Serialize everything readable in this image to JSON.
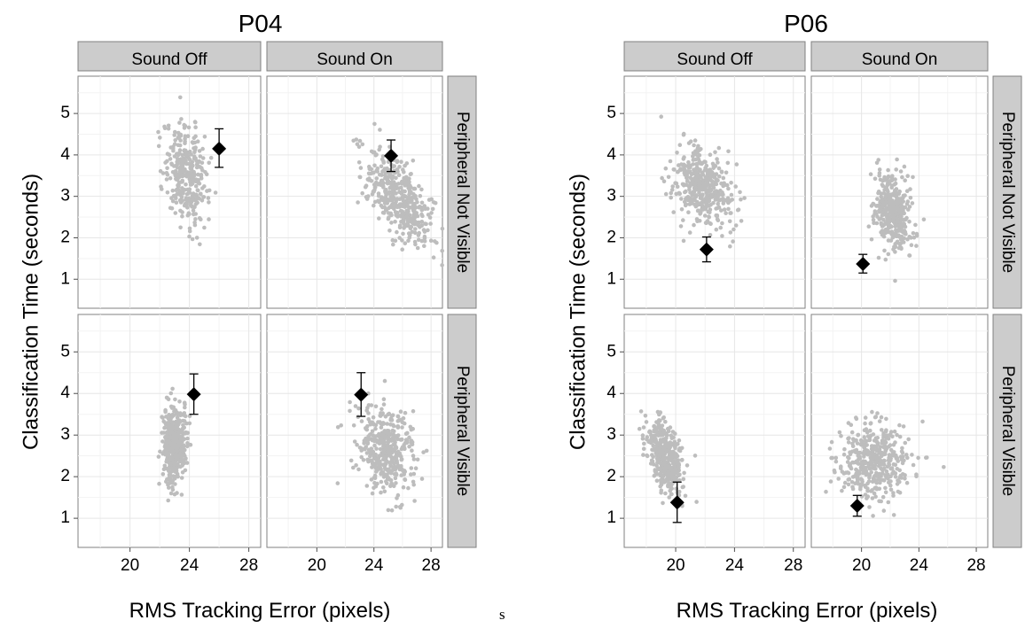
{
  "stray_char": "s",
  "chart_data": [
    {
      "type": "scatter",
      "title": "P04",
      "xlabel": "RMS Tracking Error (pixels)",
      "ylabel": "Classification Time (seconds)",
      "xlim": [
        16.5,
        28.8
      ],
      "ylim": [
        0.3,
        5.9
      ],
      "xticks": [
        20,
        24,
        28
      ],
      "yticks": [
        1,
        2,
        3,
        4,
        5
      ],
      "grid": true,
      "col_facets": [
        "Sound Off",
        "Sound On"
      ],
      "row_facets": [
        "Peripheral Not Visible",
        "Peripheral Visible"
      ],
      "panels": [
        {
          "col": "Sound Off",
          "row": "Peripheral Not Visible",
          "cloud": {
            "x_mean": 23.8,
            "x_sd": 0.75,
            "y_mean": 3.55,
            "y_sd": 0.6,
            "corr": -0.2,
            "n": 320
          },
          "point": {
            "x": 26.0,
            "y": 4.15,
            "err_low": 3.7,
            "err_high": 4.63
          }
        },
        {
          "col": "Sound On",
          "row": "Peripheral Not Visible",
          "cloud": {
            "x_mean": 25.7,
            "x_sd": 1.15,
            "y_mean": 2.95,
            "y_sd": 0.55,
            "corr": -0.55,
            "n": 420
          },
          "point": {
            "x": 25.2,
            "y": 3.98,
            "err_low": 3.6,
            "err_high": 4.36
          }
        },
        {
          "col": "Sound Off",
          "row": "Peripheral Visible",
          "cloud": {
            "x_mean": 23.0,
            "x_sd": 0.4,
            "y_mean": 2.75,
            "y_sd": 0.5,
            "corr": 0.05,
            "n": 420
          },
          "point": {
            "x": 24.3,
            "y": 3.98,
            "err_low": 3.5,
            "err_high": 4.47
          }
        },
        {
          "col": "Sound On",
          "row": "Peripheral Visible",
          "cloud": {
            "x_mean": 24.8,
            "x_sd": 1.0,
            "y_mean": 2.65,
            "y_sd": 0.5,
            "corr": -0.15,
            "n": 420
          },
          "point": {
            "x": 23.1,
            "y": 3.97,
            "err_low": 3.45,
            "err_high": 4.5
          }
        }
      ]
    },
    {
      "type": "scatter",
      "title": "P06",
      "xlabel": "RMS Tracking Error (pixels)",
      "ylabel": "Classification Time (seconds)",
      "xlim": [
        16.5,
        28.8
      ],
      "ylim": [
        0.3,
        5.9
      ],
      "xticks": [
        20,
        24,
        28
      ],
      "yticks": [
        1,
        2,
        3,
        4,
        5
      ],
      "grid": true,
      "col_facets": [
        "Sound Off",
        "Sound On"
      ],
      "row_facets": [
        "Peripheral Not Visible",
        "Peripheral Visible"
      ],
      "panels": [
        {
          "col": "Sound Off",
          "row": "Peripheral Not Visible",
          "cloud": {
            "x_mean": 21.8,
            "x_sd": 1.0,
            "y_mean": 3.2,
            "y_sd": 0.5,
            "corr": -0.35,
            "n": 420
          },
          "point": {
            "x": 22.1,
            "y": 1.72,
            "err_low": 1.42,
            "err_high": 2.02
          }
        },
        {
          "col": "Sound On",
          "row": "Peripheral Not Visible",
          "cloud": {
            "x_mean": 22.2,
            "x_sd": 0.65,
            "y_mean": 2.65,
            "y_sd": 0.45,
            "corr": -0.2,
            "n": 420
          },
          "point": {
            "x": 20.1,
            "y": 1.37,
            "err_low": 1.15,
            "err_high": 1.6
          }
        },
        {
          "col": "Sound Off",
          "row": "Peripheral Visible",
          "cloud": {
            "x_mean": 19.3,
            "x_sd": 0.6,
            "y_mean": 2.45,
            "y_sd": 0.45,
            "corr": -0.4,
            "n": 420
          },
          "point": {
            "x": 20.1,
            "y": 1.38,
            "err_low": 0.9,
            "err_high": 1.87
          }
        },
        {
          "col": "Sound On",
          "row": "Peripheral Visible",
          "cloud": {
            "x_mean": 20.9,
            "x_sd": 1.25,
            "y_mean": 2.4,
            "y_sd": 0.45,
            "corr": 0.0,
            "n": 420
          },
          "point": {
            "x": 19.7,
            "y": 1.3,
            "err_low": 1.05,
            "err_high": 1.55
          }
        }
      ]
    }
  ]
}
